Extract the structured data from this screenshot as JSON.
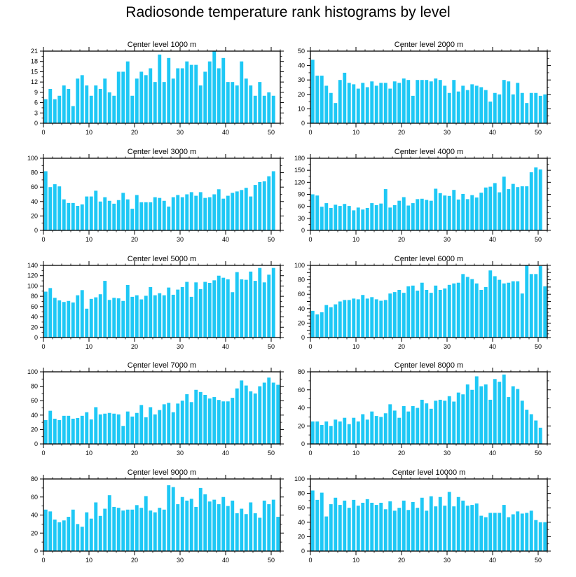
{
  "figure_title": "Radiosonde temperature rank histograms by level",
  "colors": {
    "bar": "#1ec8f5",
    "axis": "#000000"
  },
  "chart_data": [
    {
      "type": "bar",
      "title": "Center level 1000 m",
      "x": [
        0,
        1,
        2,
        3,
        4,
        5,
        6,
        7,
        8,
        9,
        10,
        11,
        12,
        13,
        14,
        15,
        16,
        17,
        18,
        19,
        20,
        21,
        22,
        23,
        24,
        25,
        26,
        27,
        28,
        29,
        30,
        31,
        32,
        33,
        34,
        35,
        36,
        37,
        38,
        39,
        40,
        41,
        42,
        43,
        44,
        45,
        46,
        47,
        48,
        49,
        50,
        51
      ],
      "values": [
        7,
        10,
        7,
        8,
        11,
        10,
        5,
        13,
        14,
        11,
        8,
        11,
        10,
        13,
        9,
        8,
        15,
        15,
        18,
        8,
        13,
        15,
        14,
        16,
        12,
        20,
        12,
        19,
        13,
        16,
        16,
        18,
        17,
        17,
        11,
        15,
        18,
        21,
        16,
        19,
        12,
        12,
        11,
        18,
        13,
        11,
        8,
        12,
        8,
        9,
        8,
        0
      ],
      "xlim": [
        0,
        52
      ],
      "ylim": [
        0,
        21
      ],
      "yticks": [
        0,
        3,
        6,
        9,
        12,
        15,
        18,
        21
      ],
      "xticks": [
        0,
        10,
        20,
        30,
        40,
        50
      ]
    },
    {
      "type": "bar",
      "title": "Center level 2000 m",
      "x": [
        0,
        1,
        2,
        3,
        4,
        5,
        6,
        7,
        8,
        9,
        10,
        11,
        12,
        13,
        14,
        15,
        16,
        17,
        18,
        19,
        20,
        21,
        22,
        23,
        24,
        25,
        26,
        27,
        28,
        29,
        30,
        31,
        32,
        33,
        34,
        35,
        36,
        37,
        38,
        39,
        40,
        41,
        42,
        43,
        44,
        45,
        46,
        47,
        48,
        49,
        50,
        51
      ],
      "values": [
        44,
        33,
        33,
        26,
        21,
        14,
        30,
        35,
        28,
        27,
        24,
        28,
        25,
        29,
        26,
        28,
        28,
        24,
        29,
        28,
        31,
        30,
        19,
        30,
        30,
        30,
        29,
        31,
        30,
        26,
        21,
        30,
        22,
        26,
        23,
        27,
        26,
        25,
        23,
        15,
        21,
        20,
        30,
        29,
        20,
        28,
        21,
        14,
        21,
        21,
        19,
        20
      ],
      "xlim": [
        0,
        52
      ],
      "ylim": [
        0,
        50
      ],
      "yticks": [
        0,
        10,
        20,
        30,
        40,
        50
      ],
      "xticks": [
        0,
        10,
        20,
        30,
        40,
        50
      ]
    },
    {
      "type": "bar",
      "title": "Center level 3000 m",
      "x": [
        0,
        1,
        2,
        3,
        4,
        5,
        6,
        7,
        8,
        9,
        10,
        11,
        12,
        13,
        14,
        15,
        16,
        17,
        18,
        19,
        20,
        21,
        22,
        23,
        24,
        25,
        26,
        27,
        28,
        29,
        30,
        31,
        32,
        33,
        34,
        35,
        36,
        37,
        38,
        39,
        40,
        41,
        42,
        43,
        44,
        45,
        46,
        47,
        48,
        49,
        50,
        51
      ],
      "values": [
        82,
        60,
        64,
        61,
        43,
        38,
        38,
        34,
        36,
        47,
        47,
        55,
        40,
        46,
        41,
        37,
        42,
        52,
        43,
        30,
        49,
        39,
        39,
        39,
        46,
        45,
        41,
        33,
        46,
        49,
        46,
        50,
        53,
        48,
        53,
        45,
        46,
        50,
        57,
        44,
        48,
        52,
        54,
        56,
        59,
        47,
        63,
        67,
        68,
        75,
        82,
        0
      ],
      "xlim": [
        0,
        52
      ],
      "ylim": [
        0,
        100
      ],
      "yticks": [
        0,
        20,
        40,
        60,
        80,
        100
      ],
      "xticks": [
        0,
        10,
        20,
        30,
        40,
        50
      ]
    },
    {
      "type": "bar",
      "title": "Center level 4000 m",
      "x": [
        0,
        1,
        2,
        3,
        4,
        5,
        6,
        7,
        8,
        9,
        10,
        11,
        12,
        13,
        14,
        15,
        16,
        17,
        18,
        19,
        20,
        21,
        22,
        23,
        24,
        25,
        26,
        27,
        28,
        29,
        30,
        31,
        32,
        33,
        34,
        35,
        36,
        37,
        38,
        39,
        40,
        41,
        42,
        43,
        44,
        45,
        46,
        47,
        48,
        49,
        50,
        51
      ],
      "values": [
        90,
        87,
        59,
        68,
        56,
        64,
        61,
        66,
        61,
        50,
        57,
        52,
        56,
        68,
        63,
        67,
        103,
        57,
        63,
        74,
        83,
        62,
        68,
        78,
        79,
        76,
        74,
        104,
        93,
        87,
        86,
        101,
        77,
        91,
        78,
        88,
        82,
        94,
        107,
        109,
        118,
        95,
        134,
        103,
        116,
        108,
        110,
        110,
        145,
        157,
        152,
        0
      ],
      "xlim": [
        0,
        52
      ],
      "ylim": [
        0,
        180
      ],
      "yticks": [
        0,
        30,
        60,
        90,
        120,
        150,
        180
      ],
      "xticks": [
        0,
        10,
        20,
        30,
        40,
        50
      ]
    },
    {
      "type": "bar",
      "title": "Center level 5000 m",
      "x": [
        0,
        1,
        2,
        3,
        4,
        5,
        6,
        7,
        8,
        9,
        10,
        11,
        12,
        13,
        14,
        15,
        16,
        17,
        18,
        19,
        20,
        21,
        22,
        23,
        24,
        25,
        26,
        27,
        28,
        29,
        30,
        31,
        32,
        33,
        34,
        35,
        36,
        37,
        38,
        39,
        40,
        41,
        42,
        43,
        44,
        45,
        46,
        47,
        48,
        49,
        50,
        51
      ],
      "values": [
        89,
        96,
        77,
        72,
        69,
        71,
        68,
        82,
        92,
        56,
        75,
        78,
        84,
        110,
        73,
        77,
        76,
        71,
        102,
        79,
        82,
        74,
        81,
        98,
        82,
        86,
        82,
        97,
        83,
        93,
        98,
        108,
        79,
        107,
        94,
        108,
        106,
        111,
        120,
        116,
        113,
        88,
        127,
        113,
        112,
        128,
        110,
        135,
        107,
        122,
        135,
        0
      ],
      "xlim": [
        0,
        52
      ],
      "ylim": [
        0,
        140
      ],
      "yticks": [
        0,
        20,
        40,
        60,
        80,
        100,
        120,
        140
      ],
      "xticks": [
        0,
        10,
        20,
        30,
        40,
        50
      ]
    },
    {
      "type": "bar",
      "title": "Center level 6000 m",
      "x": [
        0,
        1,
        2,
        3,
        4,
        5,
        6,
        7,
        8,
        9,
        10,
        11,
        12,
        13,
        14,
        15,
        16,
        17,
        18,
        19,
        20,
        21,
        22,
        23,
        24,
        25,
        26,
        27,
        28,
        29,
        30,
        31,
        32,
        33,
        34,
        35,
        36,
        37,
        38,
        39,
        40,
        41,
        42,
        43,
        44,
        45,
        46,
        47,
        48,
        49,
        50,
        51
      ],
      "values": [
        37,
        32,
        35,
        45,
        42,
        46,
        50,
        52,
        52,
        54,
        53,
        59,
        54,
        56,
        53,
        51,
        52,
        61,
        63,
        66,
        62,
        71,
        72,
        65,
        76,
        66,
        62,
        72,
        66,
        68,
        73,
        75,
        76,
        88,
        84,
        81,
        75,
        66,
        70,
        93,
        85,
        80,
        75,
        76,
        78,
        78,
        61,
        100,
        88,
        88,
        99,
        71
      ],
      "xlim": [
        0,
        52
      ],
      "ylim": [
        0,
        100
      ],
      "yticks": [
        0,
        10,
        20,
        30,
        40,
        50,
        60,
        70,
        80,
        90,
        100
      ],
      "yticklabels": [
        0,
        "",
        20,
        "",
        40,
        "",
        60,
        "",
        80,
        "",
        100
      ],
      "xticks": [
        0,
        10,
        20,
        30,
        40,
        50
      ]
    },
    {
      "type": "bar",
      "title": "Center level 7000 m",
      "x": [
        0,
        1,
        2,
        3,
        4,
        5,
        6,
        7,
        8,
        9,
        10,
        11,
        12,
        13,
        14,
        15,
        16,
        17,
        18,
        19,
        20,
        21,
        22,
        23,
        24,
        25,
        26,
        27,
        28,
        29,
        30,
        31,
        32,
        33,
        34,
        35,
        36,
        37,
        38,
        39,
        40,
        41,
        42,
        43,
        44,
        45,
        46,
        47,
        48,
        49,
        50,
        51
      ],
      "values": [
        33,
        46,
        35,
        33,
        39,
        39,
        35,
        36,
        39,
        44,
        34,
        51,
        41,
        42,
        43,
        42,
        41,
        25,
        45,
        38,
        43,
        54,
        37,
        51,
        41,
        47,
        55,
        57,
        44,
        56,
        60,
        69,
        58,
        75,
        72,
        68,
        63,
        65,
        61,
        59,
        59,
        64,
        77,
        88,
        81,
        73,
        70,
        80,
        85,
        92,
        85,
        82
      ],
      "xlim": [
        0,
        52
      ],
      "ylim": [
        0,
        100
      ],
      "yticks": [
        0,
        20,
        40,
        60,
        80,
        100
      ],
      "xticks": [
        0,
        10,
        20,
        30,
        40,
        50
      ]
    },
    {
      "type": "bar",
      "title": "Center level 8000 m",
      "x": [
        0,
        1,
        2,
        3,
        4,
        5,
        6,
        7,
        8,
        9,
        10,
        11,
        12,
        13,
        14,
        15,
        16,
        17,
        18,
        19,
        20,
        21,
        22,
        23,
        24,
        25,
        26,
        27,
        28,
        29,
        30,
        31,
        32,
        33,
        34,
        35,
        36,
        37,
        38,
        39,
        40,
        41,
        42,
        43,
        44,
        45,
        46,
        47,
        48,
        49,
        50,
        51
      ],
      "values": [
        25,
        25,
        21,
        25,
        20,
        27,
        25,
        29,
        22,
        29,
        25,
        33,
        27,
        36,
        31,
        30,
        34,
        44,
        37,
        29,
        42,
        36,
        42,
        40,
        49,
        45,
        39,
        48,
        49,
        48,
        53,
        47,
        57,
        55,
        66,
        60,
        75,
        64,
        66,
        49,
        72,
        69,
        77,
        52,
        64,
        61,
        48,
        38,
        33,
        26,
        18,
        0
      ],
      "xlim": [
        0,
        52
      ],
      "ylim": [
        0,
        80
      ],
      "yticks": [
        0,
        20,
        40,
        60,
        80
      ],
      "xticks": [
        0,
        10,
        20,
        30,
        40,
        50
      ]
    },
    {
      "type": "bar",
      "title": "Center level 9000 m",
      "x": [
        0,
        1,
        2,
        3,
        4,
        5,
        6,
        7,
        8,
        9,
        10,
        11,
        12,
        13,
        14,
        15,
        16,
        17,
        18,
        19,
        20,
        21,
        22,
        23,
        24,
        25,
        26,
        27,
        28,
        29,
        30,
        31,
        32,
        33,
        34,
        35,
        36,
        37,
        38,
        39,
        40,
        41,
        42,
        43,
        44,
        45,
        46,
        47,
        48,
        49,
        50,
        51
      ],
      "values": [
        46,
        44,
        35,
        32,
        34,
        38,
        46,
        30,
        27,
        43,
        36,
        54,
        39,
        47,
        62,
        49,
        48,
        45,
        46,
        46,
        51,
        48,
        61,
        45,
        43,
        48,
        46,
        73,
        71,
        52,
        60,
        56,
        58,
        49,
        70,
        63,
        55,
        57,
        52,
        60,
        50,
        56,
        42,
        47,
        41,
        54,
        42,
        37,
        56,
        52,
        57,
        38
      ],
      "xlim": [
        0,
        52
      ],
      "ylim": [
        0,
        80
      ],
      "yticks": [
        0,
        20,
        40,
        60,
        80
      ],
      "xticks": [
        0,
        10,
        20,
        30,
        40,
        50
      ]
    },
    {
      "type": "bar",
      "title": "Center level 10000 m",
      "x": [
        0,
        1,
        2,
        3,
        4,
        5,
        6,
        7,
        8,
        9,
        10,
        11,
        12,
        13,
        14,
        15,
        16,
        17,
        18,
        19,
        20,
        21,
        22,
        23,
        24,
        25,
        26,
        27,
        28,
        29,
        30,
        31,
        32,
        33,
        34,
        35,
        36,
        37,
        38,
        39,
        40,
        41,
        42,
        43,
        44,
        45,
        46,
        47,
        48,
        49,
        50,
        51
      ],
      "values": [
        84,
        71,
        81,
        48,
        65,
        74,
        64,
        70,
        60,
        71,
        63,
        67,
        72,
        67,
        64,
        67,
        58,
        69,
        56,
        60,
        70,
        57,
        68,
        60,
        74,
        56,
        76,
        62,
        75,
        63,
        82,
        62,
        75,
        70,
        63,
        64,
        66,
        49,
        47,
        53,
        53,
        53,
        64,
        47,
        51,
        55,
        52,
        53,
        56,
        43,
        40,
        40
      ],
      "xlim": [
        0,
        52
      ],
      "ylim": [
        0,
        100
      ],
      "yticks": [
        0,
        20,
        40,
        60,
        80,
        100
      ],
      "xticks": [
        0,
        10,
        20,
        30,
        40,
        50
      ]
    }
  ]
}
